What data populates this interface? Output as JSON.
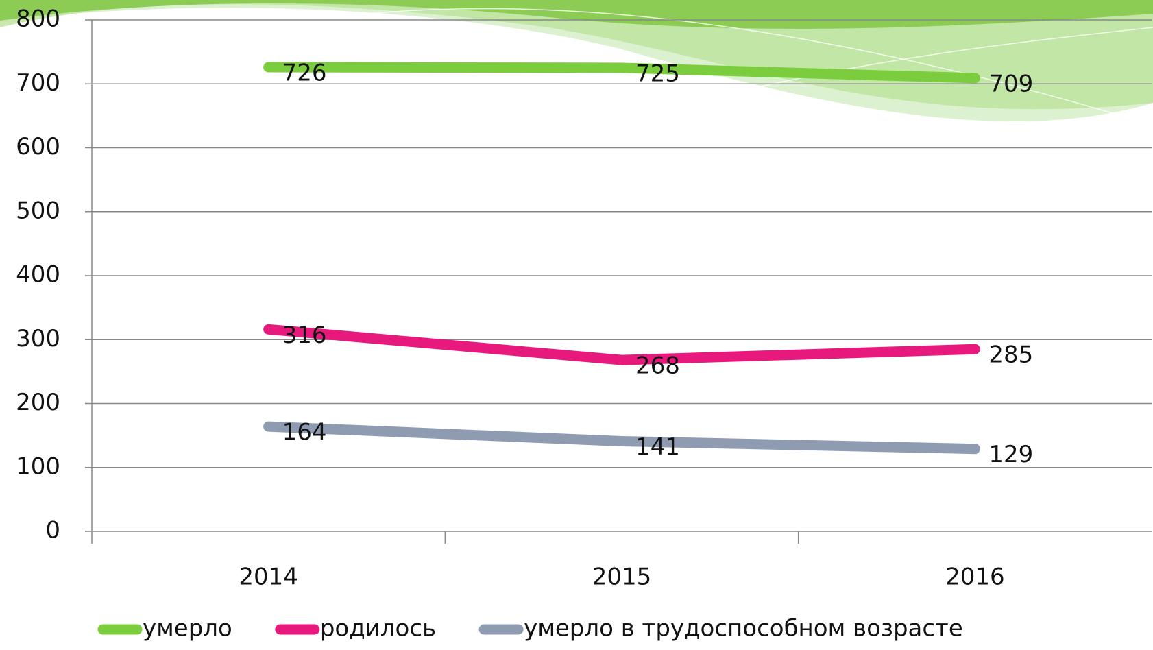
{
  "chart_data": {
    "type": "line",
    "categories": [
      "2014",
      "2015",
      "2016"
    ],
    "series": [
      {
        "name": "умерло",
        "color": "#7ccd3e",
        "values": [
          726,
          725,
          709
        ]
      },
      {
        "name": "родилось",
        "color": "#e8197d",
        "values": [
          316,
          268,
          285
        ]
      },
      {
        "name": "умерло в трудоспособном возрасте",
        "color": "#8e9bb1",
        "values": [
          164,
          141,
          129
        ]
      }
    ],
    "ylim": [
      0,
      800
    ],
    "yticks": [
      0,
      100,
      200,
      300,
      400,
      500,
      600,
      700,
      800
    ],
    "grid": true,
    "legend": "bottom"
  }
}
